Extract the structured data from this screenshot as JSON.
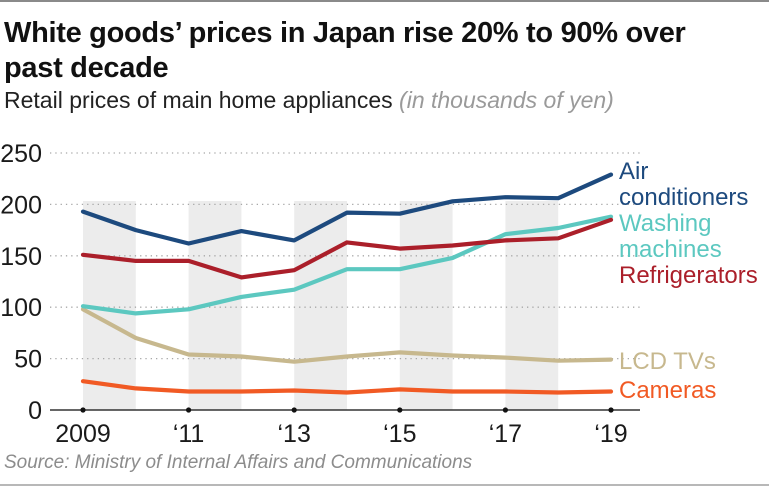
{
  "title": "White goods’ prices in Japan rise 20% to 90% over past decade",
  "subtitle": "Retail prices of main home appliances",
  "subtitle_unit": "(in thousands of yen)",
  "source": "Source: Ministry of Internal Affairs and Communications",
  "chart_data": {
    "type": "line",
    "title": "White goods’ prices in Japan rise 20% to 90% over past decade",
    "subtitle": "Retail prices of main home appliances (in thousands of yen)",
    "xlabel": "",
    "ylabel": "",
    "x": [
      2009,
      2010,
      2011,
      2012,
      2013,
      2014,
      2015,
      2016,
      2017,
      2018,
      2019
    ],
    "xlim": [
      2009,
      2019
    ],
    "ylim": [
      0,
      250
    ],
    "yticks": [
      0,
      50,
      100,
      150,
      200,
      250
    ],
    "ytick_labels": [
      "0",
      "50",
      "100",
      "150",
      "200",
      "250"
    ],
    "xticks": [
      2009,
      2011,
      2013,
      2015,
      2017,
      2019
    ],
    "xtick_labels": [
      "2009",
      "‘11",
      "‘13",
      "‘15",
      "‘17",
      "‘19"
    ],
    "grid": true,
    "shaded_year_bands": [
      [
        2009,
        2010
      ],
      [
        2011,
        2012
      ],
      [
        2013,
        2014
      ],
      [
        2015,
        2016
      ],
      [
        2017,
        2018
      ]
    ],
    "legend": "direct-labels-right",
    "series": [
      {
        "name": "Air conditioners",
        "label_lines": [
          "Air",
          "conditioners"
        ],
        "color": "#1d4a7e",
        "values": [
          193,
          175,
          162,
          174,
          165,
          192,
          191,
          203,
          207,
          206,
          229
        ]
      },
      {
        "name": "Washing machines",
        "label_lines": [
          "Washing",
          "machines"
        ],
        "color": "#5cc8c0",
        "values": [
          101,
          94,
          98,
          110,
          117,
          137,
          137,
          148,
          171,
          177,
          188
        ]
      },
      {
        "name": "Refrigerators",
        "label_lines": [
          "Refrigerators"
        ],
        "color": "#ab1f2a",
        "values": [
          151,
          145,
          145,
          129,
          136,
          163,
          157,
          160,
          165,
          167,
          185
        ]
      },
      {
        "name": "LCD TVs",
        "label_lines": [
          "LCD TVs"
        ],
        "color": "#c7b88e",
        "values": [
          98,
          70,
          54,
          52,
          47,
          52,
          56,
          53,
          51,
          48,
          49
        ]
      },
      {
        "name": "Cameras",
        "label_lines": [
          "Cameras"
        ],
        "color": "#f15a24",
        "values": [
          28,
          21,
          18,
          18,
          19,
          17,
          20,
          18,
          18,
          17,
          18
        ]
      }
    ],
    "source": "Source: Ministry of Internal Affairs and Communications"
  }
}
